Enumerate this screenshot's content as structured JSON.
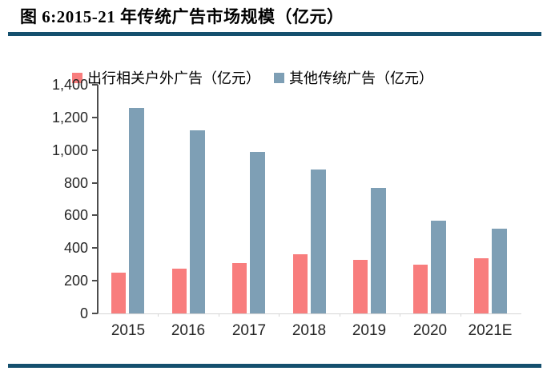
{
  "figure": {
    "title": "图 6:2015-21 年传统广告市场规模（亿元）",
    "accent_color": "#15506E"
  },
  "chart_data": {
    "type": "bar",
    "title": "图 6:2015-21 年传统广告市场规模（亿元）",
    "categories": [
      "2015",
      "2016",
      "2017",
      "2018",
      "2019",
      "2020",
      "2021E"
    ],
    "series": [
      {
        "name": "出行相关户外广告（亿元）",
        "color": "#F87D7D",
        "values": [
          250,
          275,
          310,
          360,
          330,
          300,
          340
        ]
      },
      {
        "name": "其他传统广告（亿元）",
        "color": "#7E9FB5",
        "values": [
          1260,
          1120,
          990,
          880,
          770,
          570,
          520
        ]
      }
    ],
    "xlabel": "",
    "ylabel": "",
    "ylim": [
      0,
      1400
    ],
    "ytick_interval": 200,
    "ytick_labels": [
      "0",
      "200",
      "400",
      "600",
      "800",
      "1,000",
      "1,200",
      "1,400"
    ],
    "grid": false,
    "legend_position": "top"
  }
}
